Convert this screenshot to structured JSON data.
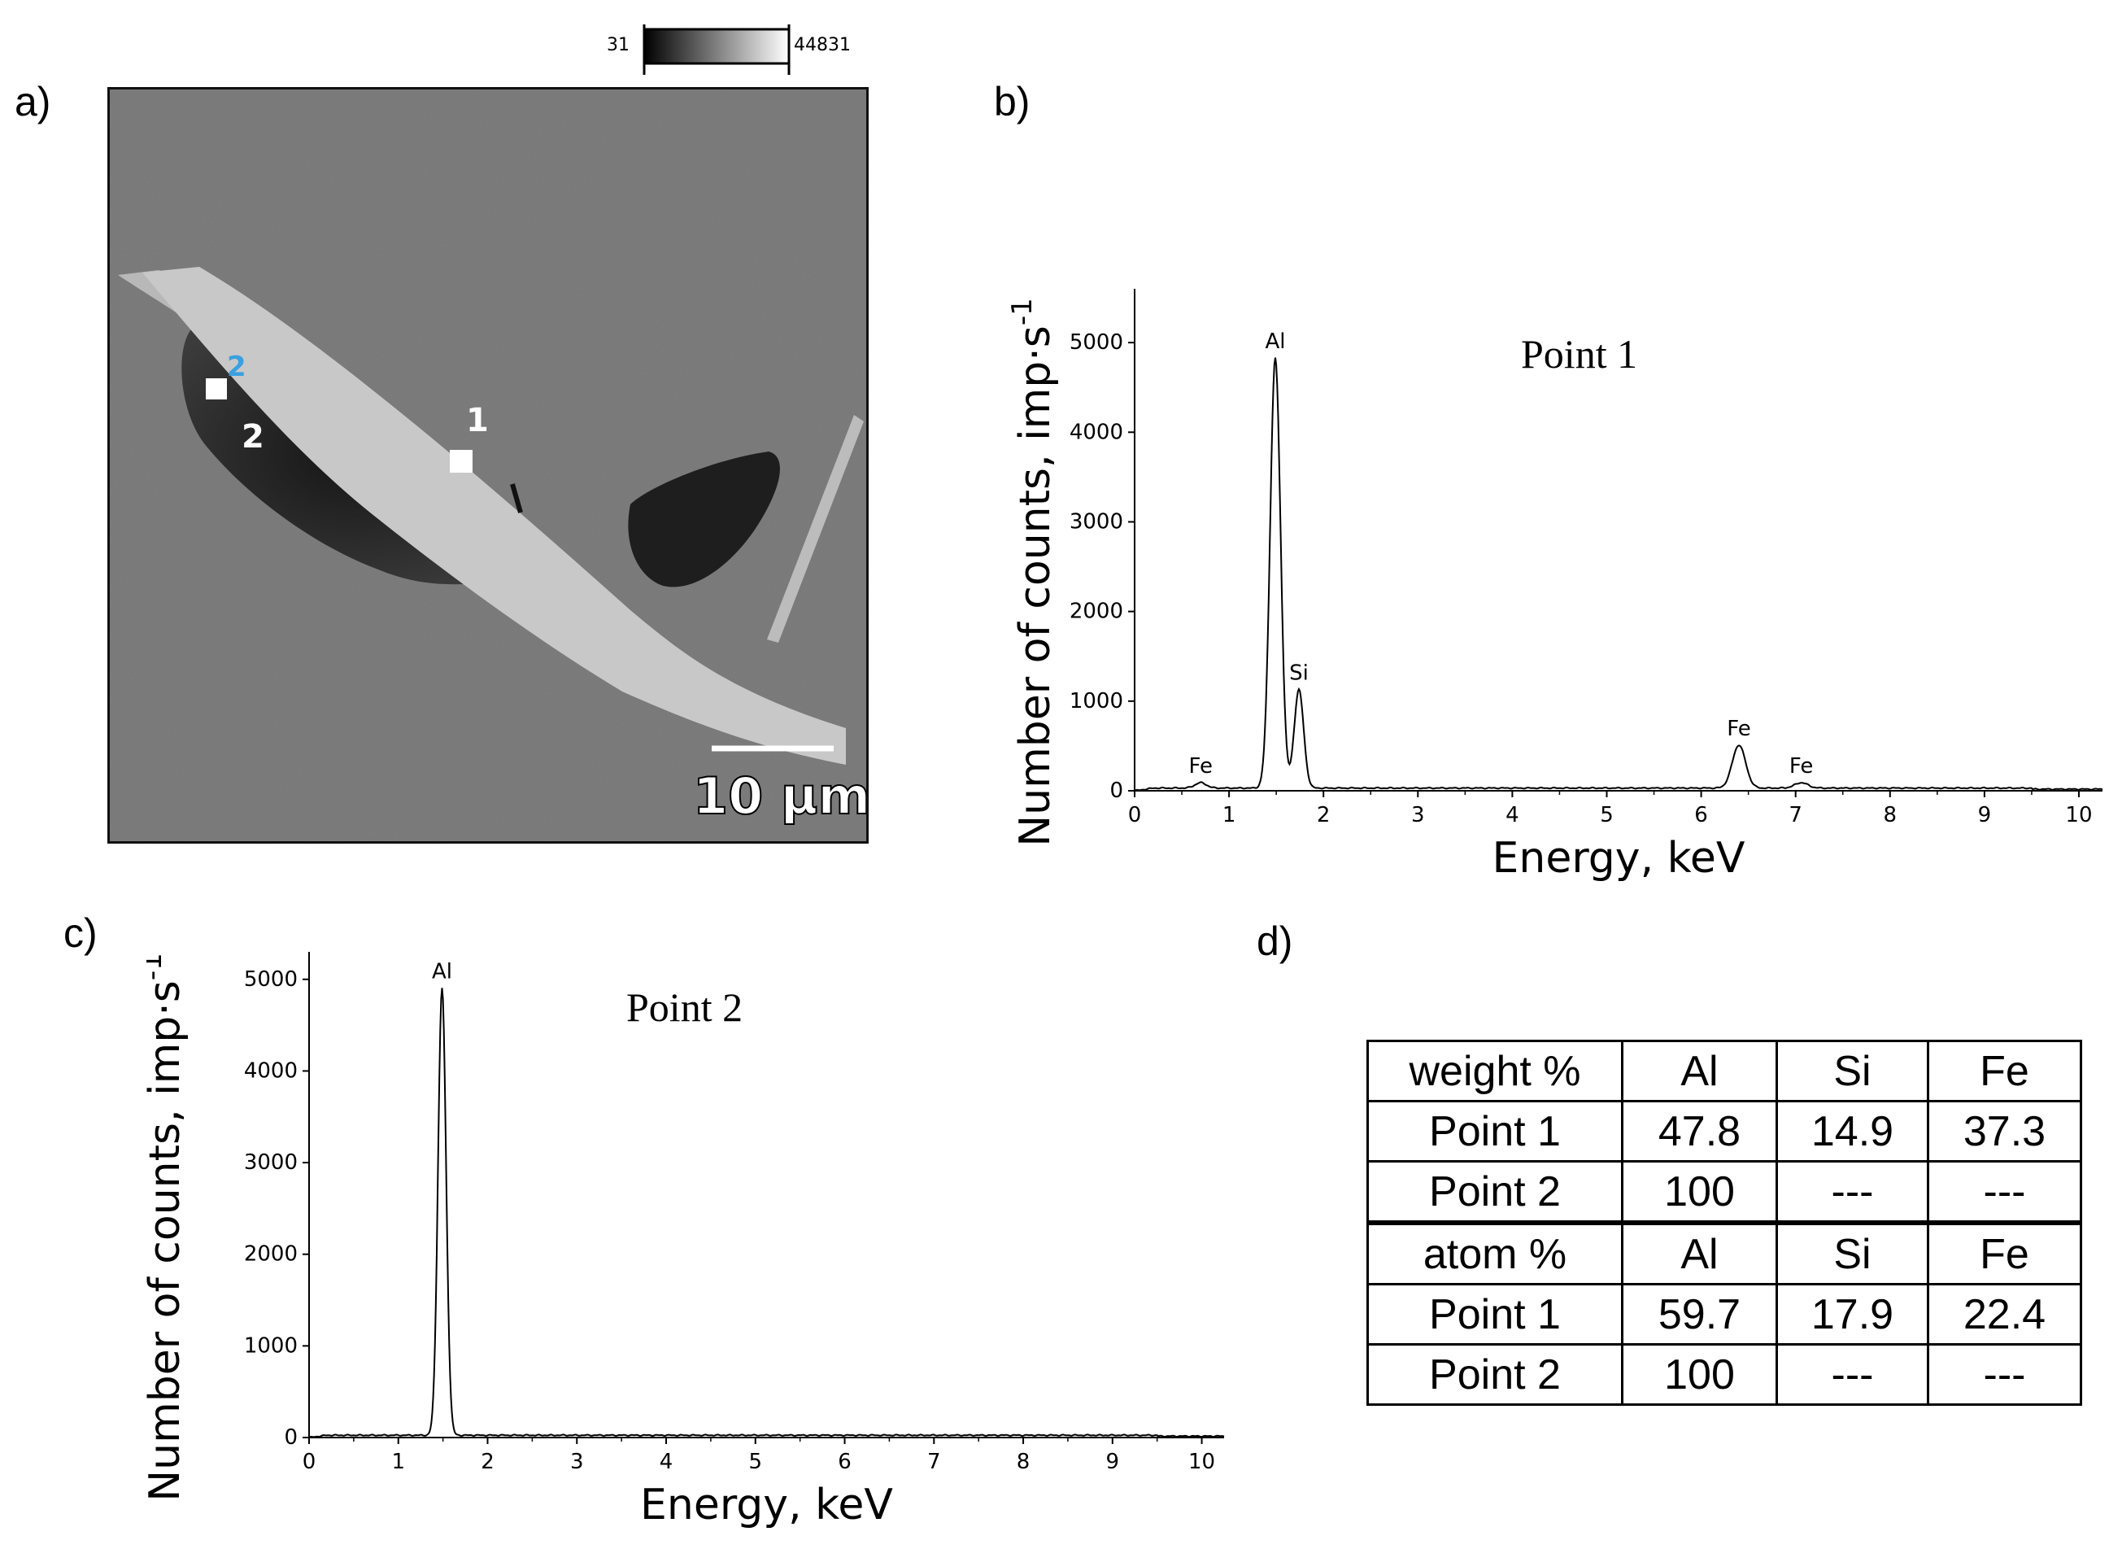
{
  "panel_labels": {
    "a": "a)",
    "b": "b)",
    "c": "c)",
    "d": "d)"
  },
  "sem_image": {
    "colorbar_min": "31",
    "colorbar_max": "44831",
    "scale_bar_label": "10 µm",
    "point_marker_1": "1",
    "point_marker_2_blue": "2",
    "point_marker_2_white": "2",
    "colors": {
      "background": "#7d7d7d",
      "bright_phase": "#c4c4c4",
      "dark_phase": "#2a2a2a",
      "marker_blue": "#3aa0e0"
    }
  },
  "chart_data": [
    {
      "type": "line",
      "panel": "b",
      "title": "Point 1",
      "xlabel": "Energy, keV",
      "ylabel_main": "Number of counts, imp·s",
      "ylabel_sup": "-1",
      "xlim": [
        0,
        10.25
      ],
      "ylim": [
        0,
        5600
      ],
      "xticks": [
        0,
        1,
        2,
        3,
        4,
        5,
        6,
        7,
        8,
        9,
        10
      ],
      "yticks": [
        0,
        1000,
        2000,
        3000,
        4000,
        5000
      ],
      "grid": false,
      "peaks": [
        {
          "label": "Fe",
          "energy": 0.7,
          "counts": 60,
          "width": 0.06
        },
        {
          "label": "Al",
          "energy": 1.49,
          "counts": 4800,
          "width": 0.055
        },
        {
          "label": "Si",
          "energy": 1.74,
          "counts": 1100,
          "width": 0.05
        },
        {
          "label": "Fe",
          "energy": 6.4,
          "counts": 480,
          "width": 0.07
        },
        {
          "label": "Fe",
          "energy": 7.06,
          "counts": 60,
          "width": 0.07
        }
      ],
      "baseline_counts": 30
    },
    {
      "type": "line",
      "panel": "c",
      "title": "Point 2",
      "xlabel": "Energy, keV",
      "ylabel_main": "Number of counts, imp·s",
      "ylabel_sup": "-1",
      "xlim": [
        0,
        10.25
      ],
      "ylim": [
        0,
        5300
      ],
      "xticks": [
        0,
        1,
        2,
        3,
        4,
        5,
        6,
        7,
        8,
        9,
        10
      ],
      "yticks": [
        0,
        1000,
        2000,
        3000,
        4000,
        5000
      ],
      "grid": false,
      "peaks": [
        {
          "label": "Al",
          "energy": 1.49,
          "counts": 4880,
          "width": 0.045
        }
      ],
      "baseline_counts": 25
    }
  ],
  "composition_table": {
    "rows": [
      [
        "weight %",
        "Al",
        "Si",
        "Fe"
      ],
      [
        "Point 1",
        "47.8",
        "14.9",
        "37.3"
      ],
      [
        "Point 2",
        "100",
        "---",
        "---"
      ],
      [
        "atom %",
        "Al",
        "Si",
        "Fe"
      ],
      [
        "Point 1",
        "59.7",
        "17.9",
        "22.4"
      ],
      [
        "Point 2",
        "100",
        "---",
        "---"
      ]
    ]
  }
}
